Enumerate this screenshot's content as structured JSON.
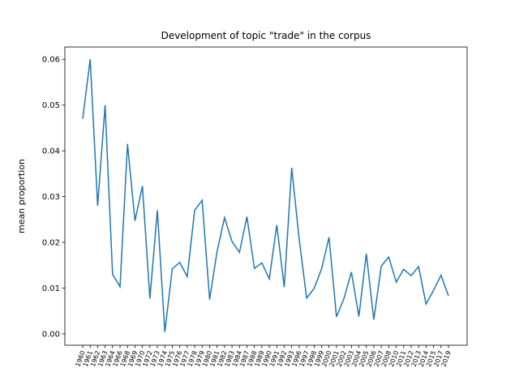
{
  "chart_data": {
    "type": "line",
    "title": "Development of topic \"trade\" in the corpus",
    "y_label": "mean proportion",
    "categories": [
      "1960",
      "1961",
      "1962",
      "1963",
      "1964",
      "1966",
      "1968",
      "1969",
      "1970",
      "1972",
      "1973",
      "1974",
      "1975",
      "1976",
      "1977",
      "1978",
      "1979",
      "1980",
      "1981",
      "1982",
      "1983",
      "1984",
      "1987",
      "1988",
      "1989",
      "1990",
      "1991",
      "1992",
      "1993",
      "1996",
      "1997",
      "1998",
      "1999",
      "2000",
      "2001",
      "2002",
      "2003",
      "2004",
      "2005",
      "2006",
      "2007",
      "2008",
      "2010",
      "2011",
      "2012",
      "2013",
      "2014",
      "2015",
      "2017",
      "2019"
    ],
    "series": [
      {
        "name": "trade",
        "color": "#1f77b4",
        "values": [
          0.047,
          0.06,
          0.028,
          0.05,
          0.013,
          0.0103,
          0.0415,
          0.0247,
          0.0323,
          0.0077,
          0.027,
          0.0004,
          0.0142,
          0.0156,
          0.0125,
          0.027,
          0.0292,
          0.0075,
          0.018,
          0.0254,
          0.0202,
          0.0178,
          0.0256,
          0.0143,
          0.0155,
          0.012,
          0.0238,
          0.0102,
          0.0363,
          0.0207,
          0.0078,
          0.0099,
          0.0142,
          0.0211,
          0.0037,
          0.0077,
          0.0135,
          0.0038,
          0.0175,
          0.0031,
          0.0148,
          0.0168,
          0.0113,
          0.0141,
          0.0127,
          0.0147,
          0.0065,
          0.0095,
          0.0128,
          0.0083
        ]
      }
    ],
    "ylim": [
      -0.0025,
      0.0627
    ],
    "yticks": [
      {
        "value": 0,
        "label": "0.00"
      },
      {
        "value": 0.01,
        "label": "0.01"
      },
      {
        "value": 0.02,
        "label": "0.02"
      },
      {
        "value": 0.03,
        "label": "0.03"
      },
      {
        "value": 0.04,
        "label": "0.04"
      },
      {
        "value": 0.05,
        "label": "0.05"
      },
      {
        "value": 0.06,
        "label": "0.06"
      }
    ]
  }
}
